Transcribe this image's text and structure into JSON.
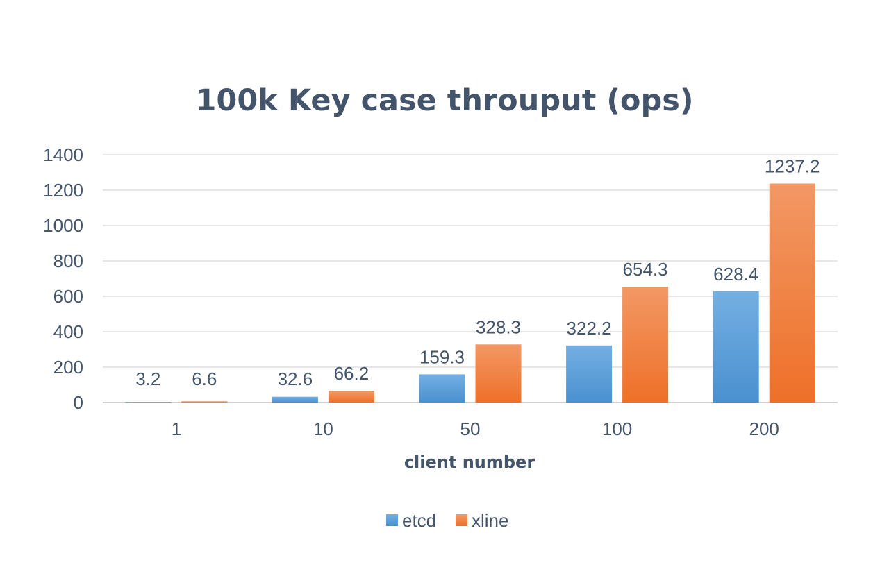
{
  "chart_data": {
    "type": "bar",
    "title": "100k Key case throuput (ops)",
    "xlabel": "client number",
    "ylabel": "",
    "categories": [
      "1",
      "10",
      "50",
      "100",
      "200"
    ],
    "series": [
      {
        "name": "etcd",
        "values": [
          3.2,
          32.6,
          159.3,
          322.2,
          628.4
        ],
        "color": "#4a90d0",
        "color_light": "#74afe2"
      },
      {
        "name": "xline",
        "values": [
          6.6,
          66.2,
          328.3,
          654.3,
          1237.2
        ],
        "color": "#ee7028",
        "color_light": "#f29865"
      }
    ],
    "ylim": [
      0,
      1400
    ],
    "yticks": [
      0,
      200,
      400,
      600,
      800,
      1000,
      1200,
      1400
    ],
    "grid": true,
    "legend": "bottom"
  }
}
